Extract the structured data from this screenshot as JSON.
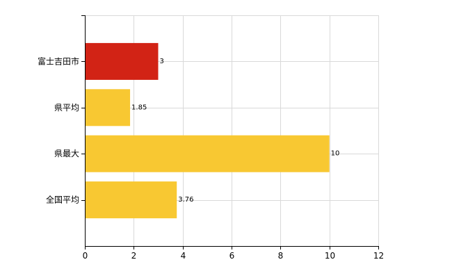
{
  "chart_data": {
    "type": "bar",
    "orientation": "horizontal",
    "categories": [
      "富士吉田市",
      "県平均",
      "県最大",
      "全国平均"
    ],
    "values": [
      3,
      1.85,
      10,
      3.76
    ],
    "value_labels": [
      "3",
      "1.85",
      "10",
      "3.76"
    ],
    "colors": [
      "#d22315",
      "#f8c832",
      "#f8c832",
      "#f8c832"
    ],
    "xlim": [
      0,
      12
    ],
    "x_ticks": [
      0,
      2,
      4,
      6,
      8,
      10,
      12
    ],
    "title": "",
    "xlabel": "",
    "ylabel": "",
    "grid": true,
    "legend": "none"
  }
}
